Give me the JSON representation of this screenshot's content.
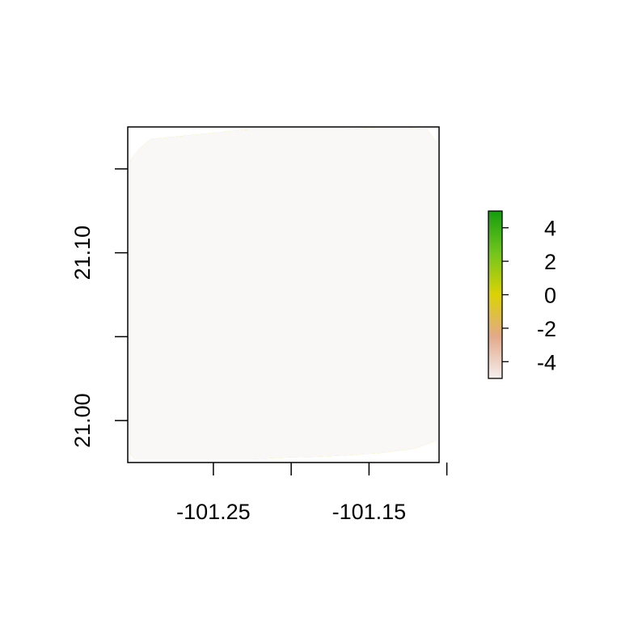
{
  "chart_data": {
    "type": "heatmap",
    "title": "",
    "xlabel": "",
    "ylabel": "",
    "xlim": [
      -101.305,
      -101.105
    ],
    "ylim": [
      20.975,
      21.175
    ],
    "x_ticks": [
      -101.25,
      -101.2,
      -101.15,
      -101.1
    ],
    "x_tick_labels": [
      "-101.25",
      "",
      "-101.15",
      ""
    ],
    "y_ticks": [
      21.0,
      21.05,
      21.1,
      21.15
    ],
    "y_tick_labels": [
      "21.00",
      "",
      "21.10",
      ""
    ],
    "legend": {
      "position": "right",
      "range": [
        -5,
        5
      ],
      "ticks": [
        4,
        2,
        0,
        -2,
        -4
      ],
      "tick_labels": [
        "4",
        "2",
        "0",
        "-2",
        "-4"
      ],
      "colors": [
        "#f5eeee",
        "#e3a98a",
        "#dcd205",
        "#72c51c",
        "#159e0e"
      ]
    },
    "grid": false
  }
}
